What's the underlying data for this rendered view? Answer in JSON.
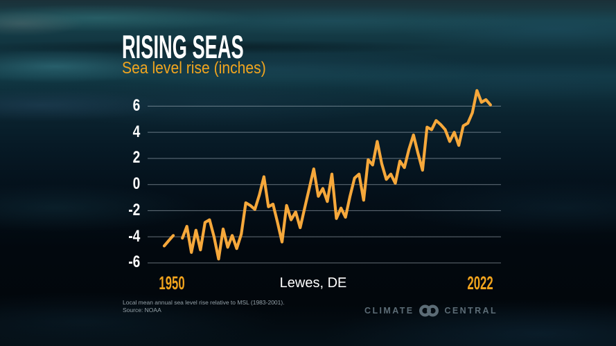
{
  "header": {
    "title": "RISING SEAS",
    "subtitle": "Sea level rise (inches)"
  },
  "station_label": "Lewes, DE",
  "x_axis": {
    "left_label": "1950",
    "right_label": "2022"
  },
  "footer": {
    "line1": "Local mean annual sea level rise relative to MSL (1983-2001).",
    "line2": "Source: NOAA"
  },
  "logo": {
    "left_word": "CLIMATE",
    "right_word": "CENTRAL",
    "icon": "interlocking-rings-icon"
  },
  "colors": {
    "line": "#F6A83B",
    "accent_orange": "#F1A41D",
    "grid": "#AFBEC7",
    "title_white": "#FFFFFF",
    "footer_gray": "#94A1A8",
    "logo_gray": "#5C6C76"
  },
  "chart_data": {
    "type": "line",
    "title": "RISING SEAS",
    "subtitle": "Sea level rise (inches)",
    "station": "Lewes, DE",
    "xlabel": "",
    "ylabel": "Sea level rise (inches)",
    "x_start_year": 1950,
    "x_end_year": 2022,
    "x_tick_labels": [
      "1950",
      "2022"
    ],
    "y_ticks": [
      6,
      4,
      2,
      0,
      -2,
      -4,
      -6
    ],
    "ylim": [
      -6.6,
      7.6
    ],
    "grid": true,
    "legend_position": "none",
    "missing_years": [
      1953
    ],
    "values": [
      -4.7,
      -4.3,
      -3.9,
      null,
      -4.1,
      -3.2,
      -5.2,
      -3.5,
      -5.0,
      -2.9,
      -2.7,
      -4.0,
      -5.7,
      -3.4,
      -4.8,
      -3.9,
      -4.9,
      -3.8,
      -1.4,
      -1.6,
      -1.9,
      -0.8,
      0.6,
      -1.7,
      -1.5,
      -2.9,
      -4.4,
      -1.6,
      -2.7,
      -2.1,
      -3.3,
      -1.8,
      -0.3,
      1.2,
      -0.9,
      -0.3,
      -1.3,
      0.8,
      -2.6,
      -1.8,
      -2.5,
      -0.9,
      0.5,
      0.8,
      -1.2,
      1.9,
      1.5,
      3.3,
      1.6,
      0.4,
      0.8,
      0.1,
      1.8,
      1.3,
      2.7,
      3.8,
      2.4,
      1.1,
      4.4,
      4.2,
      4.9,
      4.6,
      4.2,
      3.3,
      4.0,
      3.0,
      4.5,
      4.7,
      5.5,
      7.2,
      6.3,
      6.5,
      6.1
    ]
  }
}
